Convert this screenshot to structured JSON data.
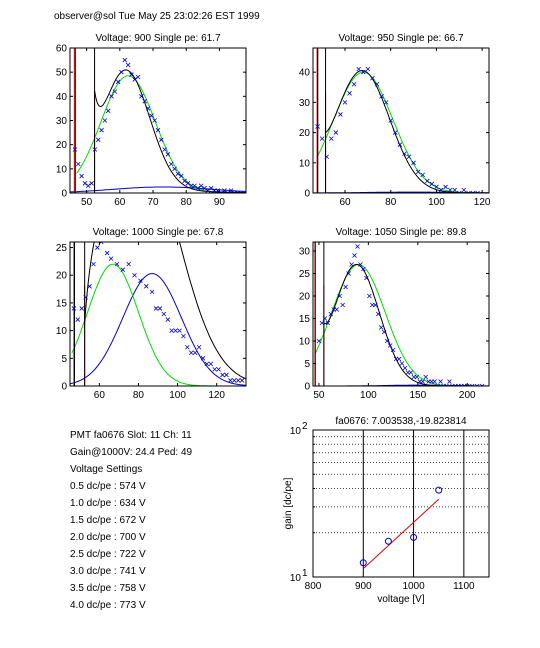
{
  "header": {
    "text": "observer@sol  Tue May 25 23:02:26 EST 1999"
  },
  "info": {
    "pmt_line": "PMT fa0676 Slot: 11 Ch: 11",
    "gain_line": "Gain@1000V: 24.4 Ped: 49",
    "settings_title": "Voltage Settings",
    "settings": [
      "0.5 dc/pe : 574 V",
      "1.0 dc/pe : 634 V",
      "1.5 dc/pe : 672 V",
      "2.0 dc/pe : 700 V",
      "2.5 dc/pe : 722 V",
      "3.0 dc/pe : 741 V",
      "3.5 dc/pe : 758 V",
      "4.0 dc/pe : 773 V"
    ]
  },
  "colors": {
    "fit": "#000000",
    "signal": "#00dd00",
    "background": "#0000cc",
    "pedestal": "#dd0000",
    "points": "#0000cc",
    "grid": "#000000"
  },
  "chart_data": [
    {
      "type": "scatter",
      "title": "Voltage: 900 Single pe: 61.7",
      "xlim": [
        45,
        98
      ],
      "ylim": [
        0,
        60
      ],
      "xticks": [
        50,
        60,
        70,
        80,
        90
      ],
      "yticks": [
        0,
        10,
        20,
        30,
        40,
        50,
        60
      ],
      "xticklabels": [
        "50",
        "60",
        "70",
        "80",
        "90"
      ],
      "yticklabels": [
        "0",
        "10",
        "20",
        "30",
        "40",
        "50",
        "60"
      ],
      "pedestal": {
        "x0": 46.3,
        "x1": 52.4,
        "ytop": 60
      },
      "fit": {
        "mu": 61.8,
        "sigma": 7.2,
        "amp": 50.3,
        "rise_x0": 52.4,
        "rise_y0": 42
      },
      "signal": {
        "mu": 62.5,
        "sigma": 8.2,
        "amp": 48.5,
        "start": 47
      },
      "background": {
        "mu": 73,
        "sigma": 15,
        "amp": 2.5
      },
      "points": [
        [
          46.5,
          18
        ],
        [
          47.5,
          12
        ],
        [
          48.5,
          7
        ],
        [
          49.5,
          4
        ],
        [
          50.5,
          3
        ],
        [
          51.5,
          4
        ],
        [
          52.5,
          18
        ],
        [
          53.5,
          22
        ],
        [
          54.5,
          26
        ],
        [
          55.5,
          30
        ],
        [
          56.5,
          34
        ],
        [
          57.5,
          40
        ],
        [
          58.5,
          42
        ],
        [
          59.5,
          46
        ],
        [
          60.5,
          50
        ],
        [
          61.5,
          55
        ],
        [
          62.5,
          53
        ],
        [
          63.5,
          49
        ],
        [
          64.5,
          47
        ],
        [
          65.5,
          48
        ],
        [
          66.5,
          40
        ],
        [
          67.5,
          38
        ],
        [
          68.5,
          35
        ],
        [
          69.5,
          32
        ],
        [
          70.5,
          30
        ],
        [
          71.5,
          26
        ],
        [
          72.5,
          22
        ],
        [
          73.5,
          18
        ],
        [
          74.5,
          16
        ],
        [
          75.5,
          12
        ],
        [
          76.5,
          10
        ],
        [
          77.5,
          8
        ],
        [
          78.5,
          7
        ],
        [
          79.5,
          5
        ],
        [
          80.5,
          4
        ],
        [
          81.5,
          3
        ],
        [
          82.5,
          3
        ],
        [
          83.5,
          2
        ],
        [
          84.5,
          3
        ],
        [
          85.5,
          2
        ],
        [
          86.5,
          1
        ],
        [
          87.5,
          2
        ],
        [
          88.5,
          1
        ],
        [
          89.5,
          1
        ],
        [
          90.5,
          0
        ],
        [
          91.5,
          1
        ],
        [
          92.5,
          0
        ],
        [
          93.5,
          1
        ],
        [
          94.5,
          0
        ],
        [
          95.5,
          0
        ],
        [
          96.5,
          0
        ]
      ]
    },
    {
      "type": "scatter",
      "title": "Voltage: 950 Single pe: 66.7",
      "xlim": [
        46,
        123
      ],
      "ylim": [
        0,
        48
      ],
      "xticks": [
        60,
        80,
        100,
        120
      ],
      "yticks": [
        0,
        10,
        20,
        30,
        40
      ],
      "xticklabels": [
        "60",
        "80",
        "100",
        "120"
      ],
      "yticklabels": [
        "0",
        "10",
        "20",
        "30",
        "40"
      ],
      "pedestal": {
        "x0": 47.8,
        "x1": 51.5,
        "ytop": 48
      },
      "fit": {
        "mu": 67.5,
        "sigma": 12,
        "amp": 40.5,
        "rise_x0": 51.5,
        "rise_y0": 20
      },
      "signal": {
        "mu": 68,
        "sigma": 13,
        "amp": 40,
        "start": 48
      },
      "background": {
        "mu": 90,
        "sigma": 20,
        "amp": 0.3
      },
      "points": [
        [
          48,
          22
        ],
        [
          50,
          18
        ],
        [
          52,
          12
        ],
        [
          54,
          18
        ],
        [
          56,
          20
        ],
        [
          58,
          26
        ],
        [
          60,
          30
        ],
        [
          62,
          33
        ],
        [
          64,
          36
        ],
        [
          66,
          41
        ],
        [
          68,
          40
        ],
        [
          70,
          41
        ],
        [
          72,
          38
        ],
        [
          74,
          36
        ],
        [
          76,
          32
        ],
        [
          78,
          30
        ],
        [
          80,
          24
        ],
        [
          82,
          20
        ],
        [
          84,
          16
        ],
        [
          86,
          13
        ],
        [
          88,
          12
        ],
        [
          90,
          10
        ],
        [
          92,
          7
        ],
        [
          94,
          6
        ],
        [
          96,
          4
        ],
        [
          98,
          3
        ],
        [
          100,
          2
        ],
        [
          102,
          1
        ],
        [
          104,
          2
        ],
        [
          106,
          1
        ],
        [
          108,
          1
        ],
        [
          110,
          0
        ],
        [
          112,
          1
        ],
        [
          114,
          0
        ],
        [
          116,
          0
        ],
        [
          118,
          0
        ]
      ]
    },
    {
      "type": "scatter",
      "title": "Voltage: 1000 Single pe: 67.8",
      "xlim": [
        45,
        135
      ],
      "ylim": [
        0,
        26
      ],
      "xticks": [
        60,
        80,
        100,
        120
      ],
      "yticks": [
        0,
        5,
        10,
        15,
        20,
        25
      ],
      "xticklabels": [
        "60",
        "80",
        "100",
        "120"
      ],
      "yticklabels": [
        "0",
        "5",
        "10",
        "15",
        "20",
        "25"
      ],
      "pedestal": {
        "x0": 47,
        "x1": 52.5,
        "ytop": 26
      },
      "fit": {
        "mu": 77,
        "sigma": 22,
        "amp": 40,
        "rise_x0": 52.5,
        "rise_y0": 11
      },
      "signal": {
        "mu": 67,
        "sigma": 13,
        "amp": 22,
        "start": 46
      },
      "background": {
        "mu": 87,
        "sigma": 15,
        "amp": 20.3
      },
      "points": [
        [
          47,
          14
        ],
        [
          49,
          12
        ],
        [
          51,
          14
        ],
        [
          53,
          16
        ],
        [
          55,
          18
        ],
        [
          57,
          22
        ],
        [
          59,
          25
        ],
        [
          61,
          26
        ],
        [
          64,
          24
        ],
        [
          66,
          23
        ],
        [
          69,
          22
        ],
        [
          72,
          21
        ],
        [
          75,
          22
        ],
        [
          78,
          20
        ],
        [
          81,
          19
        ],
        [
          84,
          18
        ],
        [
          87,
          17
        ],
        [
          89,
          14
        ],
        [
          91,
          14
        ],
        [
          93,
          13
        ],
        [
          95,
          12
        ],
        [
          97,
          10
        ],
        [
          99,
          10
        ],
        [
          101,
          10
        ],
        [
          103,
          9
        ],
        [
          105,
          7
        ],
        [
          107,
          6
        ],
        [
          109,
          6
        ],
        [
          111,
          7
        ],
        [
          113,
          5
        ],
        [
          115,
          4
        ],
        [
          117,
          4
        ],
        [
          119,
          3
        ],
        [
          121,
          3
        ],
        [
          123,
          2
        ],
        [
          125,
          2
        ],
        [
          127,
          1
        ],
        [
          129,
          1
        ],
        [
          131,
          1
        ],
        [
          133,
          1
        ]
      ]
    },
    {
      "type": "scatter",
      "title": "Voltage: 1050 Single pe: 89.8",
      "xlim": [
        44,
        222
      ],
      "ylim": [
        0,
        32
      ],
      "xticks": [
        50,
        100,
        150,
        200
      ],
      "yticks": [
        0,
        5,
        10,
        15,
        20,
        25,
        30
      ],
      "xticklabels": [
        "50",
        "100",
        "150",
        "200"
      ],
      "yticklabels": [
        "0",
        "5",
        "10",
        "15",
        "20",
        "25",
        "30"
      ],
      "pedestal": {
        "x0": 46,
        "x1": 55,
        "ytop": 32
      },
      "fit": {
        "mu": 88,
        "sigma": 23,
        "amp": 27,
        "rise_x0": 55,
        "rise_y0": 14
      },
      "signal": {
        "mu": 90,
        "sigma": 27,
        "amp": 27,
        "start": 46
      },
      "background": {
        "mu": 150,
        "sigma": 30,
        "amp": 0.2
      },
      "points": [
        [
          50,
          10
        ],
        [
          53,
          14
        ],
        [
          56,
          15
        ],
        [
          59,
          14
        ],
        [
          62,
          16
        ],
        [
          65,
          17
        ],
        [
          68,
          17
        ],
        [
          71,
          20
        ],
        [
          74,
          18
        ],
        [
          77,
          22
        ],
        [
          80,
          25
        ],
        [
          83,
          27
        ],
        [
          86,
          29
        ],
        [
          89,
          31
        ],
        [
          92,
          27
        ],
        [
          95,
          26
        ],
        [
          98,
          24
        ],
        [
          101,
          20
        ],
        [
          104,
          18
        ],
        [
          107,
          18
        ],
        [
          110,
          16
        ],
        [
          113,
          13
        ],
        [
          116,
          12
        ],
        [
          119,
          10
        ],
        [
          122,
          9
        ],
        [
          125,
          8
        ],
        [
          128,
          6
        ],
        [
          131,
          6
        ],
        [
          134,
          5
        ],
        [
          137,
          4
        ],
        [
          140,
          3
        ],
        [
          143,
          3
        ],
        [
          146,
          2
        ],
        [
          149,
          2
        ],
        [
          152,
          1
        ],
        [
          155,
          1
        ],
        [
          158,
          2
        ],
        [
          161,
          1
        ],
        [
          164,
          1
        ],
        [
          167,
          1
        ],
        [
          170,
          0
        ],
        [
          173,
          1
        ],
        [
          176,
          0
        ],
        [
          179,
          0
        ],
        [
          182,
          1
        ],
        [
          185,
          0
        ],
        [
          188,
          0
        ],
        [
          191,
          0
        ],
        [
          194,
          0
        ],
        [
          197,
          0
        ],
        [
          200,
          0
        ],
        [
          205,
          0
        ],
        [
          210,
          0
        ],
        [
          215,
          0
        ]
      ]
    },
    {
      "type": "scatter",
      "title": "fa0676: 7.003538,-19.823814",
      "xlabel": "voltage [V]",
      "ylabel": "gain [dc/pe]",
      "xlim": [
        800,
        1150
      ],
      "ylim": [
        10,
        100
      ],
      "yscale": "log",
      "xticks": [
        800,
        900,
        1000,
        1100
      ],
      "xticklabels": [
        "800",
        "900",
        "1000",
        "1100"
      ],
      "ytick_base": "10",
      "ytick_exps": [
        "1",
        "2"
      ],
      "grid": true,
      "points": [
        [
          900,
          12.5
        ],
        [
          950,
          17.5
        ],
        [
          1000,
          18.6
        ],
        [
          1050,
          39
        ]
      ],
      "fit_line": [
        [
          900,
          11.4
        ],
        [
          1050,
          33.8
        ]
      ]
    }
  ]
}
